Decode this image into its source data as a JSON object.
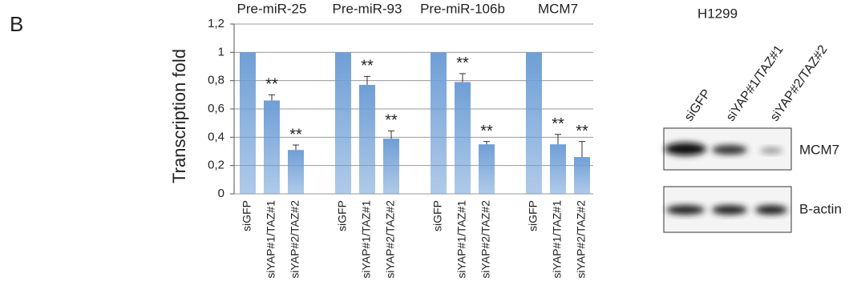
{
  "panel_label": "B",
  "chart_data": {
    "type": "bar",
    "ylabel": "Transcription fold",
    "color": "#6f9fd6",
    "ylim": [
      0,
      1.2
    ],
    "yticks": [
      0,
      {
        "value": 0.2,
        "label": "0,2"
      },
      {
        "value": 0.4,
        "label": "0,4"
      },
      {
        "value": 0.6,
        "label": "0,6"
      },
      {
        "value": 0.8,
        "label": "0,8"
      },
      1,
      {
        "value": 1.2,
        "label": "1,2"
      }
    ],
    "grid": true,
    "groups": [
      {
        "title": "Pre-miR-25",
        "categories": [
          "siGFP",
          "siYAP#1/TAZ#1",
          "siYAP#2/TAZ#2"
        ],
        "values": [
          1,
          0.66,
          0.31
        ],
        "errors": [
          null,
          0.04,
          0.035
        ],
        "significance": [
          null,
          "**",
          "**"
        ]
      },
      {
        "title": "Pre-miR-93",
        "categories": [
          "siGFP",
          "siYAP#1/TAZ#1",
          "siYAP#2/TAZ#2"
        ],
        "values": [
          1,
          0.77,
          0.39
        ],
        "errors": [
          null,
          0.06,
          0.055
        ],
        "significance": [
          null,
          "**",
          "**"
        ]
      },
      {
        "title": "Pre-miR-106b",
        "categories": [
          "siGFP",
          "siYAP#1/TAZ#1",
          "siYAP#2/TAZ#2"
        ],
        "values": [
          1,
          0.79,
          0.35
        ],
        "errors": [
          null,
          0.06,
          0.02
        ],
        "significance": [
          null,
          "**",
          "**"
        ]
      },
      {
        "title": "MCM7",
        "categories": [
          "siGFP",
          "siYAP#1/TAZ#1",
          "siYAP#2/TAZ#2"
        ],
        "values": [
          1,
          0.35,
          0.26
        ],
        "errors": [
          null,
          0.07,
          0.11
        ],
        "significance": [
          null,
          "**",
          "**"
        ]
      }
    ]
  },
  "blot": {
    "title": "H1299",
    "lanes": [
      "siGFP",
      "siYAP#1/TAZ#1",
      "siYAP#2/TAZ#2"
    ],
    "rows": [
      "MCM7",
      "B-actin"
    ]
  }
}
